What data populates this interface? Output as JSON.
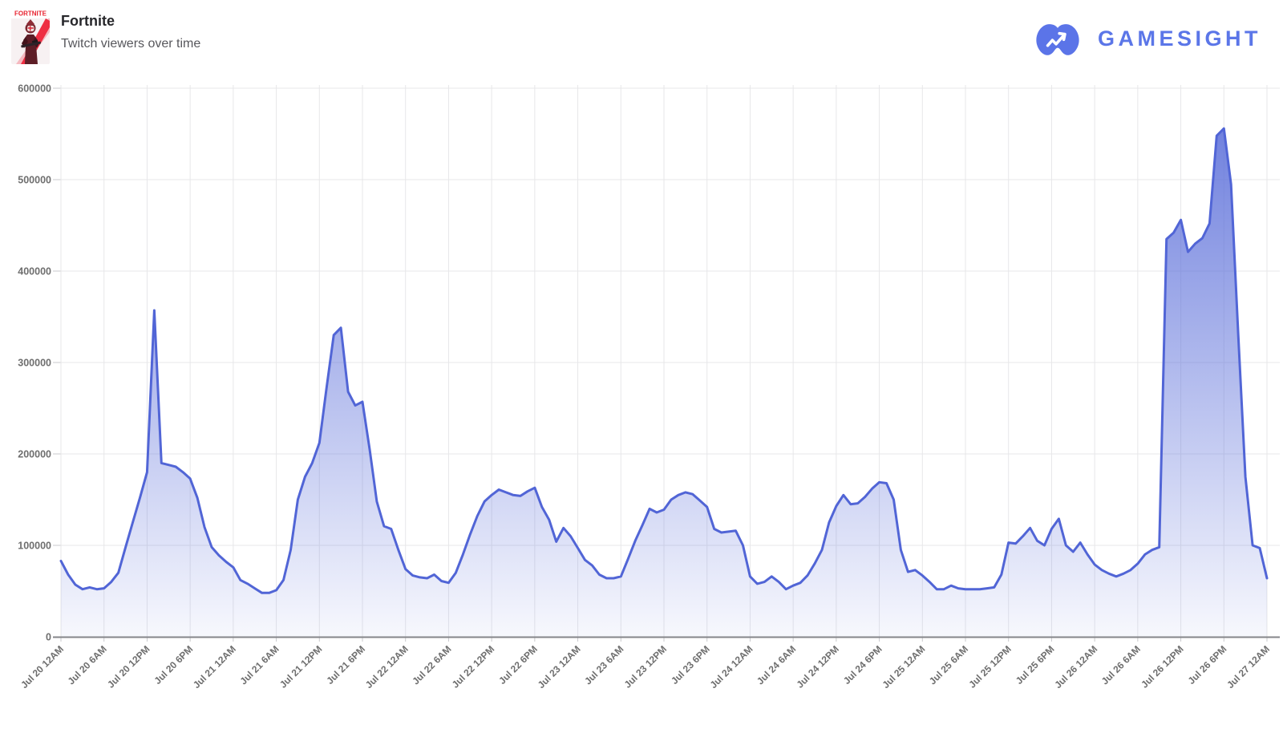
{
  "header": {
    "game_title": "Fortnite",
    "subtitle": "Twitch viewers over time",
    "box_art_label": "FORTNITE",
    "brand": {
      "name": "GAMESIGHT",
      "color": "#5b76e8"
    }
  },
  "chart_data": {
    "type": "area",
    "title": "Fortnite Twitch viewers over time",
    "legend": "none",
    "grid": "on",
    "ylabel": "",
    "xlabel": "",
    "ylim": [
      0,
      600000
    ],
    "y_tick_labels": [
      "0",
      "100000",
      "200000",
      "300000",
      "400000",
      "500000",
      "600000"
    ],
    "x_tick_labels": [
      "Jul 20 12AM",
      "Jul 20 6AM",
      "Jul 20 12PM",
      "Jul 20 6PM",
      "Jul 21 12AM",
      "Jul 21 6AM",
      "Jul 21 12PM",
      "Jul 21 6PM",
      "Jul 22 12AM",
      "Jul 22 6AM",
      "Jul 22 12PM",
      "Jul 22 6PM",
      "Jul 23 12AM",
      "Jul 23 6AM",
      "Jul 23 12PM",
      "Jul 23 6PM",
      "Jul 24 12AM",
      "Jul 24 6AM",
      "Jul 24 12PM",
      "Jul 24 6PM",
      "Jul 25 12AM",
      "Jul 25 6AM",
      "Jul 25 12PM",
      "Jul 25 6PM",
      "Jul 26 12AM",
      "Jul 26 6AM",
      "Jul 26 12PM",
      "Jul 26 6PM",
      "Jul 27 12AM"
    ],
    "x_start": "Jul 20 12AM",
    "x_end": "Jul 27 12AM",
    "interval_hours": 1,
    "series": [
      {
        "name": "Twitch viewers",
        "values": [
          83000,
          68000,
          57000,
          52000,
          54000,
          52000,
          53000,
          60000,
          70000,
          98000,
          125000,
          152000,
          180000,
          357000,
          190000,
          188000,
          186000,
          180000,
          173000,
          152000,
          120000,
          98000,
          89000,
          82000,
          76000,
          62000,
          58000,
          53000,
          48000,
          48000,
          51000,
          62000,
          95000,
          150000,
          175000,
          190000,
          212000,
          272000,
          330000,
          338000,
          268000,
          253000,
          257000,
          205000,
          148000,
          121000,
          118000,
          95000,
          74000,
          67000,
          65000,
          64000,
          68000,
          61000,
          59000,
          70000,
          90000,
          112000,
          132000,
          148000,
          155000,
          161000,
          158000,
          155000,
          154000,
          159000,
          163000,
          142000,
          128000,
          104000,
          119000,
          110000,
          97000,
          84000,
          78000,
          68000,
          64000,
          64000,
          66000,
          85000,
          105000,
          122000,
          140000,
          136000,
          139000,
          150000,
          155000,
          158000,
          156000,
          149000,
          142000,
          118000,
          114000,
          115000,
          116000,
          100000,
          66000,
          58000,
          60000,
          66000,
          60000,
          52000,
          56000,
          59000,
          67000,
          80000,
          95000,
          125000,
          143000,
          155000,
          145000,
          146000,
          153000,
          162000,
          169000,
          168000,
          150000,
          95000,
          71000,
          73000,
          67000,
          60000,
          52000,
          52000,
          56000,
          53000,
          52000,
          52000,
          52000,
          53000,
          54000,
          68000,
          103000,
          102000,
          110000,
          119000,
          105000,
          100000,
          118000,
          129000,
          100000,
          93000,
          103000,
          90000,
          79000,
          73000,
          69000,
          66000,
          69000,
          73000,
          80000,
          90000,
          95000,
          98000,
          435000,
          442000,
          456000,
          421000,
          430000,
          436000,
          452000,
          548000,
          556000,
          495000,
          330000,
          175000,
          100000,
          97000,
          64000
        ]
      }
    ],
    "style": {
      "line_color": "#5165d6",
      "fill_color": "#5e71da",
      "fill_opacity_top": 0.95,
      "fill_opacity_bottom": 0.05,
      "grid_color": "#e7e7e9",
      "axis_color": "#85868a",
      "tick_stub_color": "#c9c9cc",
      "tick_label_color": "#6e6e6e"
    }
  }
}
